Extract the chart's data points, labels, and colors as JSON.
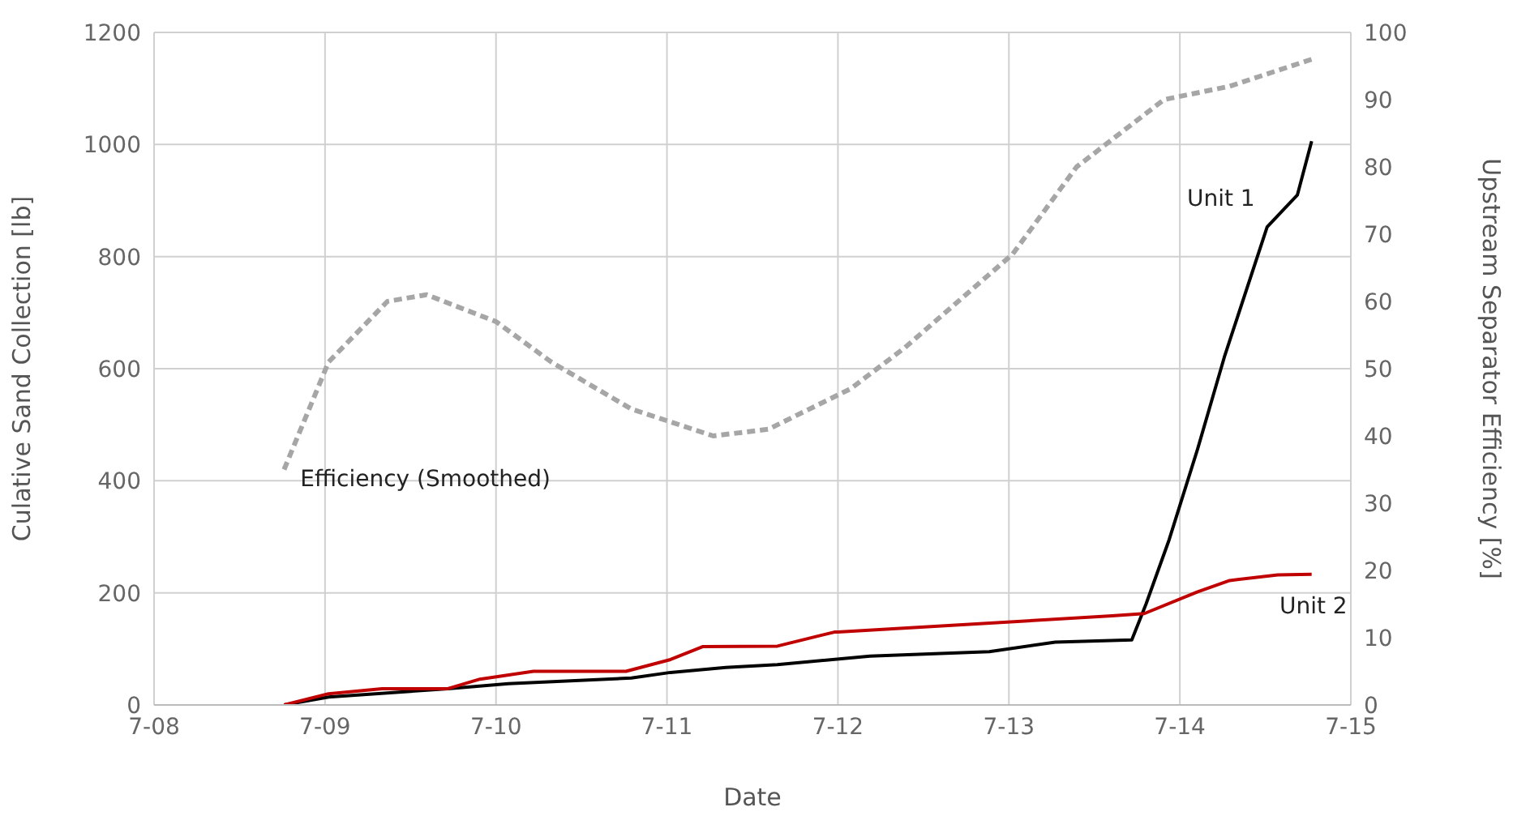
{
  "chart_data": {
    "type": "line",
    "xlabel": "Date",
    "ylabel": "Culative Sand Collection [lb]",
    "y2label": "Upstream Separator Efficiency [%]",
    "xlim": [
      "--07-08",
      "--07-15"
    ],
    "xticks": [
      {
        "value": "--07-08",
        "label": "7-08"
      },
      {
        "value": "--07-09",
        "label": "7-09"
      },
      {
        "value": "--07-10",
        "label": "7-10"
      },
      {
        "value": "--07-11",
        "label": "7-11"
      },
      {
        "value": "--07-12",
        "label": "7-12"
      },
      {
        "value": "--07-13",
        "label": "7-13"
      },
      {
        "value": "--07-14",
        "label": "7-14"
      },
      {
        "value": "--07-15",
        "label": "7-15"
      }
    ],
    "ylim": [
      0,
      1200
    ],
    "yticks": [
      0,
      200,
      400,
      600,
      800,
      1000,
      1200
    ],
    "y2lim": [
      0,
      100
    ],
    "y2ticks": [
      0,
      10,
      20,
      30,
      40,
      50,
      60,
      70,
      80,
      90,
      100
    ],
    "grid": true,
    "legend": false,
    "marker": "none",
    "series": [
      {
        "name": "Unit 1",
        "color": "#000000",
        "line_style": "solid",
        "x": [
          "--07-08T18:15",
          "--07-09T00:30",
          "--07-09T17:15",
          "--07-10T01:45",
          "--07-10T19:00",
          "--07-11T00:30",
          "--07-11T08:15",
          "--07-11T15:30",
          "--07-12T04:30",
          "--07-12T21:15",
          "--07-13T06:30",
          "--07-13T17:15",
          "--07-13T19:15",
          "--07-13T22:30",
          "--07-14T02:30",
          "--07-14T06:15",
          "--07-14T12:15",
          "--07-14T16:30",
          "--07-14T18:30"
        ],
        "values": [
          0,
          14,
          29,
          38,
          48,
          58,
          67,
          72,
          87,
          95,
          112,
          116,
          180,
          295,
          457,
          621,
          853,
          910,
          1006
        ]
      },
      {
        "name": "Unit 2",
        "color": "#c00000",
        "line_style": "solid",
        "x": [
          "--07-08T18:15",
          "--07-09T00:30",
          "--07-09T08:00",
          "--07-09T17:15",
          "--07-09T21:45",
          "--07-10T05:15",
          "--07-10T18:15",
          "--07-11T00:30",
          "--07-11T05:00",
          "--07-11T15:30",
          "--07-11T23:30",
          "--07-12T00:00",
          "--07-13T14:30",
          "--07-13T19:00",
          "--07-14T02:30",
          "--07-14T07:00",
          "--07-14T13:45",
          "--07-14T18:30"
        ],
        "values": [
          0,
          20,
          29,
          29,
          46,
          60,
          60,
          81,
          104,
          105,
          130,
          130,
          159,
          163,
          202,
          222,
          232,
          233
        ]
      },
      {
        "name": "Efficiency (Smoothed)",
        "color": "#a6a6a6",
        "line_style": "dashed",
        "axis": "y2",
        "x": [
          "--07-08T18:15",
          "--07-09T00:30",
          "--07-09T08:45",
          "--07-09T14:15",
          "--07-10T00:00",
          "--07-10T07:45",
          "--07-10T19:00",
          "--07-11T06:30",
          "--07-11T14:15",
          "--07-12T01:45",
          "--07-12T09:15",
          "--07-13T00:30",
          "--07-13T09:30",
          "--07-13T21:45",
          "--07-14T07:00",
          "--07-14T18:30"
        ],
        "values": [
          35,
          51,
          60,
          61,
          57,
          51,
          44,
          40,
          41,
          47,
          53,
          67,
          80,
          90,
          92,
          96
        ]
      }
    ]
  }
}
